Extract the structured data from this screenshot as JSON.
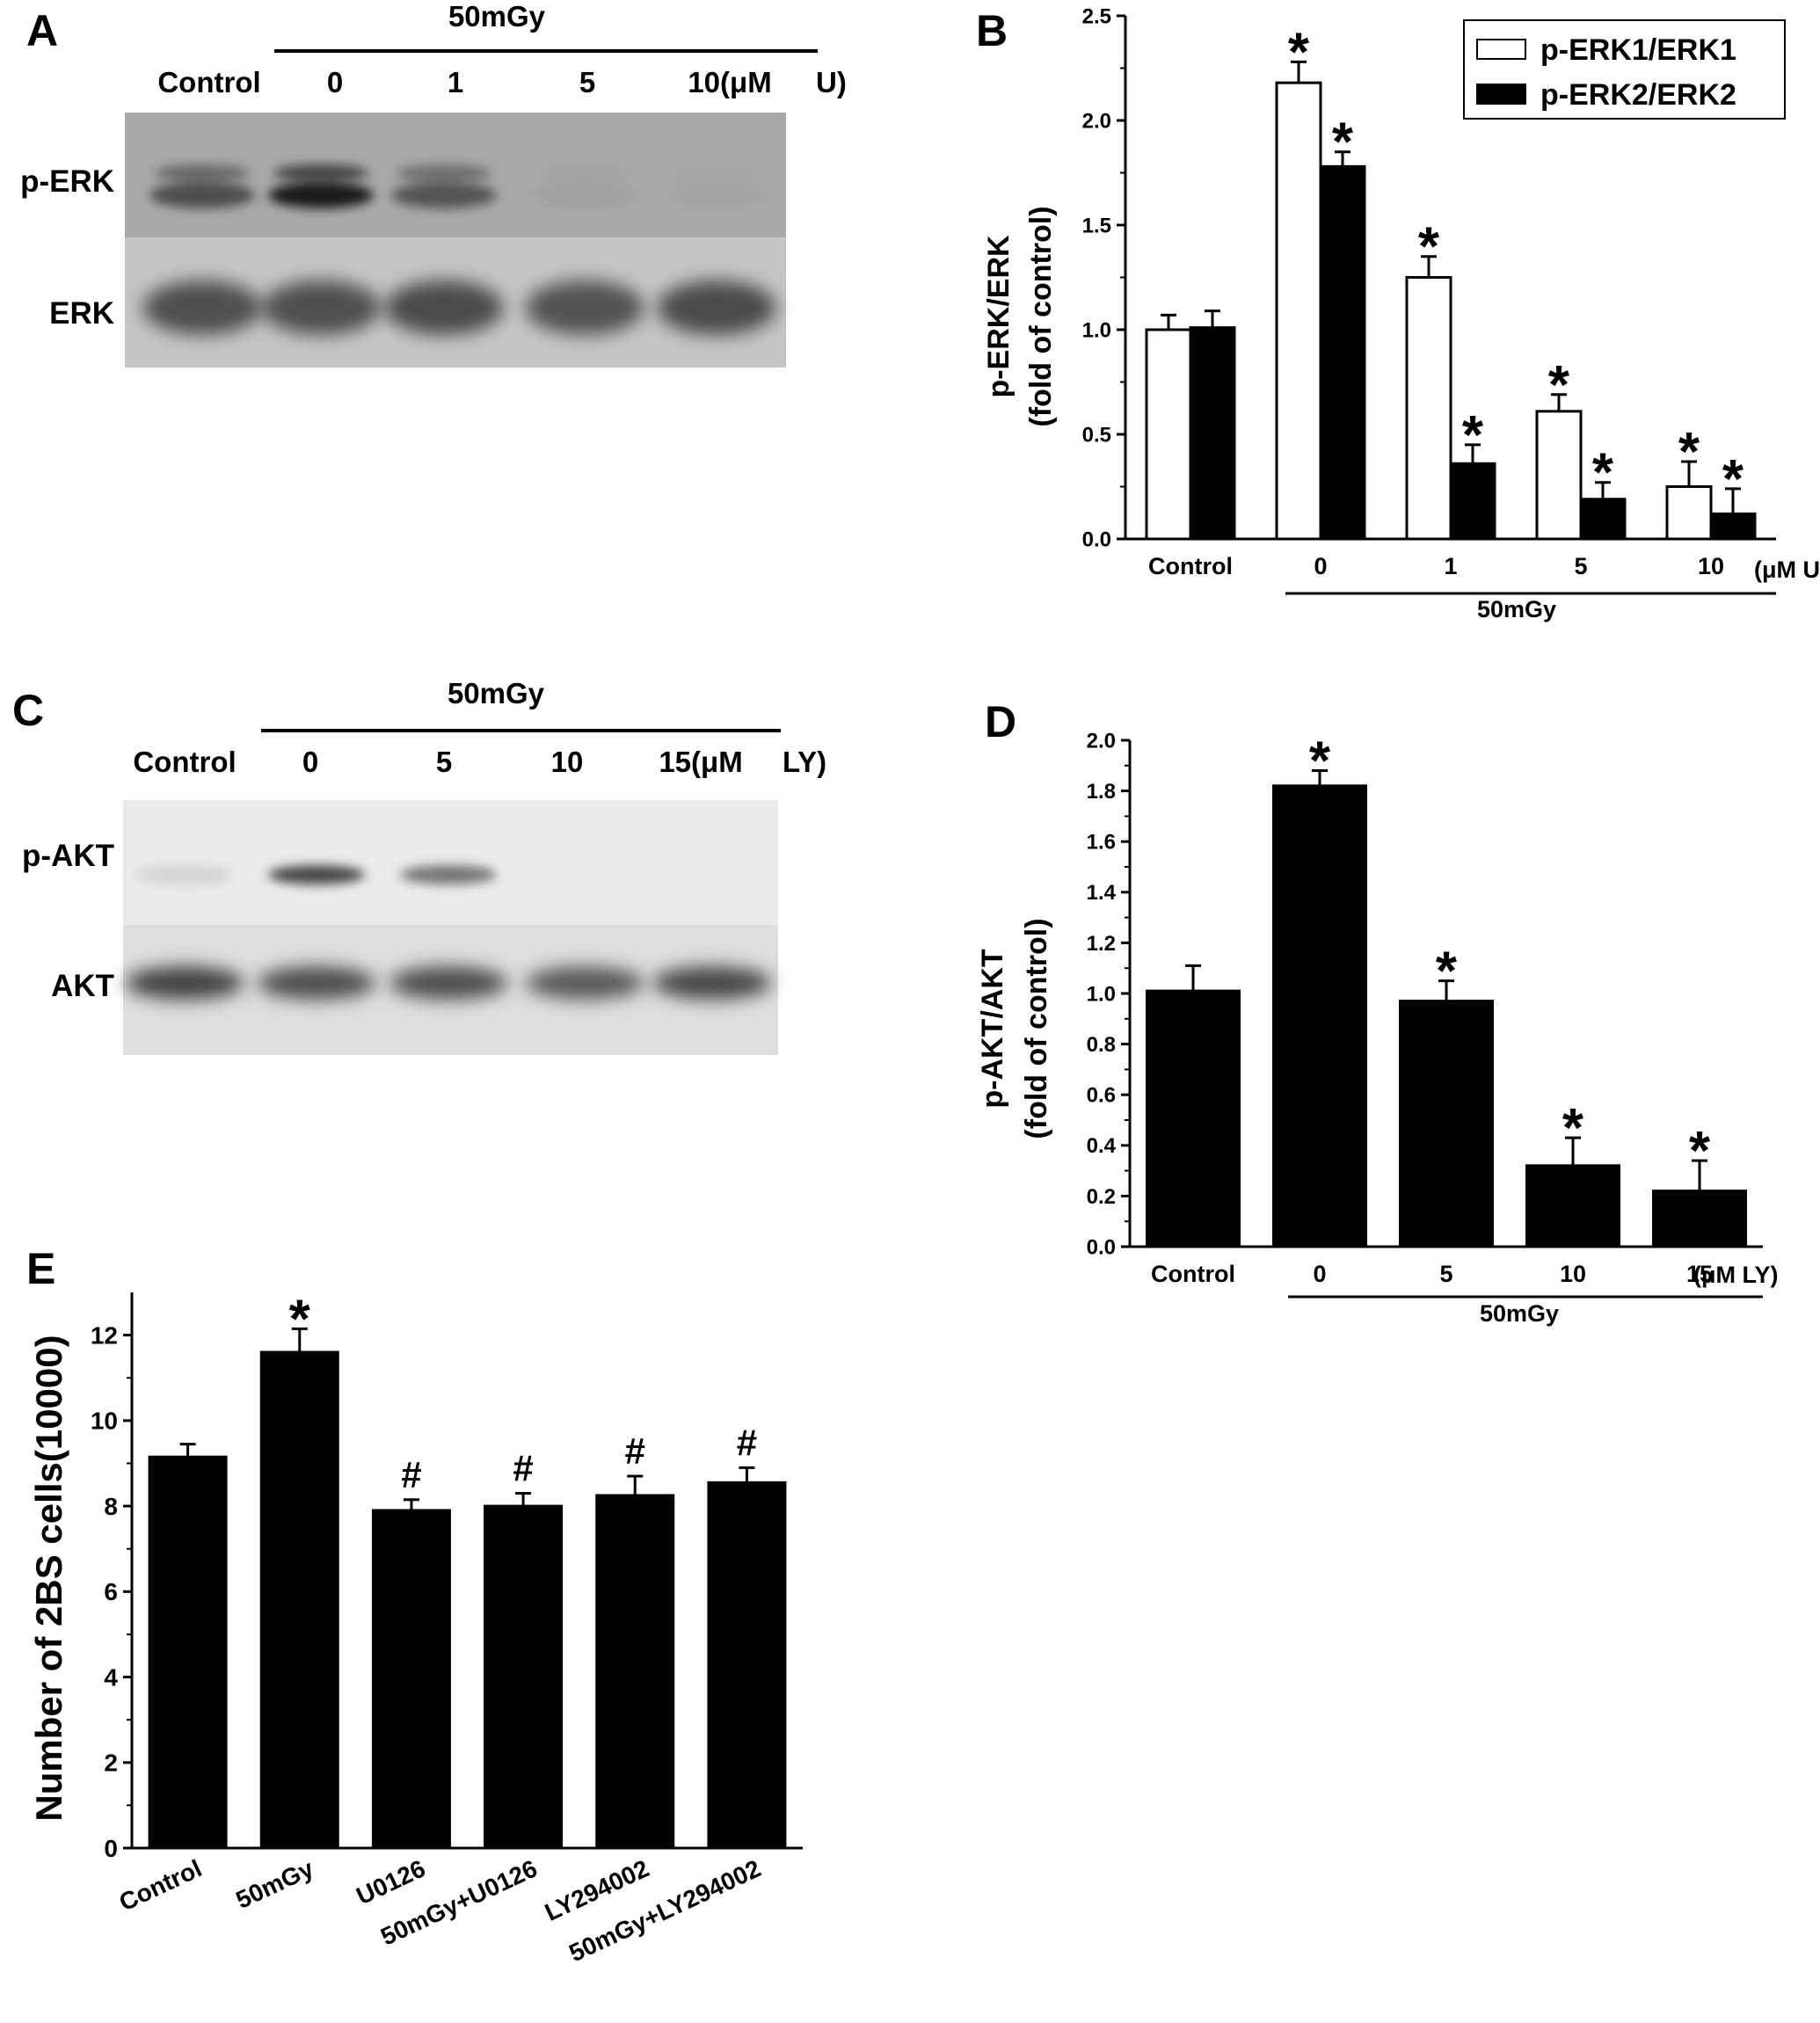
{
  "panel_letters": {
    "a": "A",
    "b": "B",
    "c": "C",
    "d": "D",
    "e": "E"
  },
  "blot_a": {
    "treatment": "50mGy",
    "lanes": [
      "Control",
      "0",
      "1",
      "5",
      "10(μM"
    ],
    "unit_suffix": "U)",
    "rows": [
      "p-ERK",
      "ERK"
    ],
    "band_intensity_top": [
      0.55,
      0.85,
      0.5,
      0.05,
      0.03
    ],
    "band_intensity_bottom": [
      0.6,
      0.6,
      0.62,
      0.58,
      0.62
    ]
  },
  "blot_c": {
    "treatment": "50mGy",
    "lanes": [
      "Control",
      "0",
      "5",
      "10",
      "15(μM"
    ],
    "unit_suffix": "LY)",
    "rows": [
      "p-AKT",
      "AKT"
    ],
    "band_intensity_top": [
      0.1,
      0.7,
      0.5,
      0.0,
      0.0
    ],
    "band_intensity_bottom": [
      0.7,
      0.65,
      0.65,
      0.6,
      0.68
    ]
  },
  "chart_data": [
    {
      "panel": "B",
      "type": "bar",
      "categories": [
        "Control",
        "0",
        "1",
        "5",
        "10"
      ],
      "unit_label": "(μM U)",
      "group_label": "50mGy",
      "ylabel_line1": "p-ERK/ERK",
      "ylabel_line2": "(fold of control)",
      "ylim": [
        0,
        2.5
      ],
      "yticks": [
        "0.0",
        "0.5",
        "1.0",
        "1.5",
        "2.0",
        "2.5"
      ],
      "series": [
        {
          "name": "p-ERK1/ERK1",
          "fill": "#ffffff",
          "values": [
            1.0,
            2.18,
            1.25,
            0.61,
            0.25
          ],
          "errors": [
            0.07,
            0.1,
            0.1,
            0.08,
            0.12
          ],
          "marks": [
            "",
            "*",
            "*",
            "*",
            "*"
          ]
        },
        {
          "name": "p-ERK2/ERK2",
          "fill": "#000000",
          "values": [
            1.01,
            1.78,
            0.36,
            0.19,
            0.12
          ],
          "errors": [
            0.08,
            0.07,
            0.09,
            0.08,
            0.12
          ],
          "marks": [
            "",
            "*",
            "*",
            "*",
            "*"
          ]
        }
      ],
      "legend": "top-right"
    },
    {
      "panel": "D",
      "type": "bar",
      "categories": [
        "Control",
        "0",
        "5",
        "10",
        "15"
      ],
      "unit_label": "(μM LY)",
      "group_label": "50mGy",
      "ylabel_line1": "p-AKT/AKT",
      "ylabel_line2": "(fold of control)",
      "ylim": [
        0,
        2.0
      ],
      "yticks": [
        "0.0",
        "0.2",
        "0.4",
        "0.6",
        "0.8",
        "1.0",
        "1.2",
        "1.4",
        "1.6",
        "1.8",
        "2.0"
      ],
      "series": [
        {
          "fill": "#000000",
          "values": [
            1.01,
            1.82,
            0.97,
            0.32,
            0.22
          ],
          "errors": [
            0.1,
            0.06,
            0.08,
            0.11,
            0.12
          ],
          "marks": [
            "",
            "*",
            "*",
            "*",
            "*"
          ]
        }
      ]
    },
    {
      "panel": "E",
      "type": "bar",
      "categories": [
        "Control",
        "50mGy",
        "U0126",
        "50mGy+U0126",
        "LY294002",
        "50mGy+LY294002"
      ],
      "ylabel": "Number of 2BS cells(10000)",
      "ylim": [
        0,
        13
      ],
      "yticks": [
        "0",
        "2",
        "4",
        "6",
        "8",
        "10",
        "12"
      ],
      "series": [
        {
          "fill": "#000000",
          "values": [
            9.15,
            11.6,
            7.9,
            8.0,
            8.25,
            8.55
          ],
          "errors": [
            0.3,
            0.55,
            0.25,
            0.3,
            0.45,
            0.35
          ],
          "marks": [
            "",
            "*",
            "#",
            "#",
            "#",
            "#"
          ]
        }
      ]
    }
  ]
}
